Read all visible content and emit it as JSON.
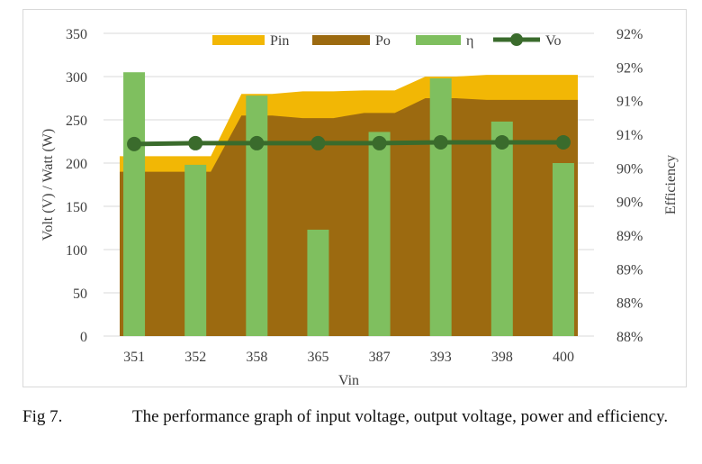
{
  "chart_data": {
    "type": "bar",
    "title": "",
    "xlabel": "Vin",
    "ylabel": "Volt (V) / Watt (W)",
    "y2label": "Efficiency",
    "categories": [
      "351",
      "352",
      "358",
      "365",
      "387",
      "393",
      "398",
      "400"
    ],
    "ylim": [
      0,
      350
    ],
    "yticks": [
      "0",
      "50",
      "100",
      "150",
      "200",
      "250",
      "300",
      "350"
    ],
    "y2ticks": [
      "88%",
      "88%",
      "89%",
      "89%",
      "90%",
      "90%",
      "91%",
      "91%",
      "92%",
      "92%"
    ],
    "legend_position": "top",
    "series": [
      {
        "name": "Pin",
        "kind": "area",
        "color": "#f2b705",
        "values": [
          208,
          208,
          280,
          283,
          284,
          300,
          302,
          302
        ]
      },
      {
        "name": "Po",
        "kind": "area",
        "color": "#9c6a10",
        "values": [
          190,
          190,
          255,
          252,
          258,
          275,
          273,
          273
        ]
      },
      {
        "name": "η",
        "kind": "bar",
        "color": "#7fbf5f",
        "axis": "secondary",
        "values": [
          305,
          198,
          278,
          123,
          236,
          298,
          248,
          200
        ]
      },
      {
        "name": "Vo",
        "kind": "line",
        "color": "#3a6b2c",
        "values": [
          222,
          223,
          223,
          223,
          223,
          224,
          224,
          224
        ]
      }
    ]
  },
  "caption": {
    "label": "Fig 7.",
    "text": "The performance graph of input voltage, output voltage, power and efficiency."
  }
}
